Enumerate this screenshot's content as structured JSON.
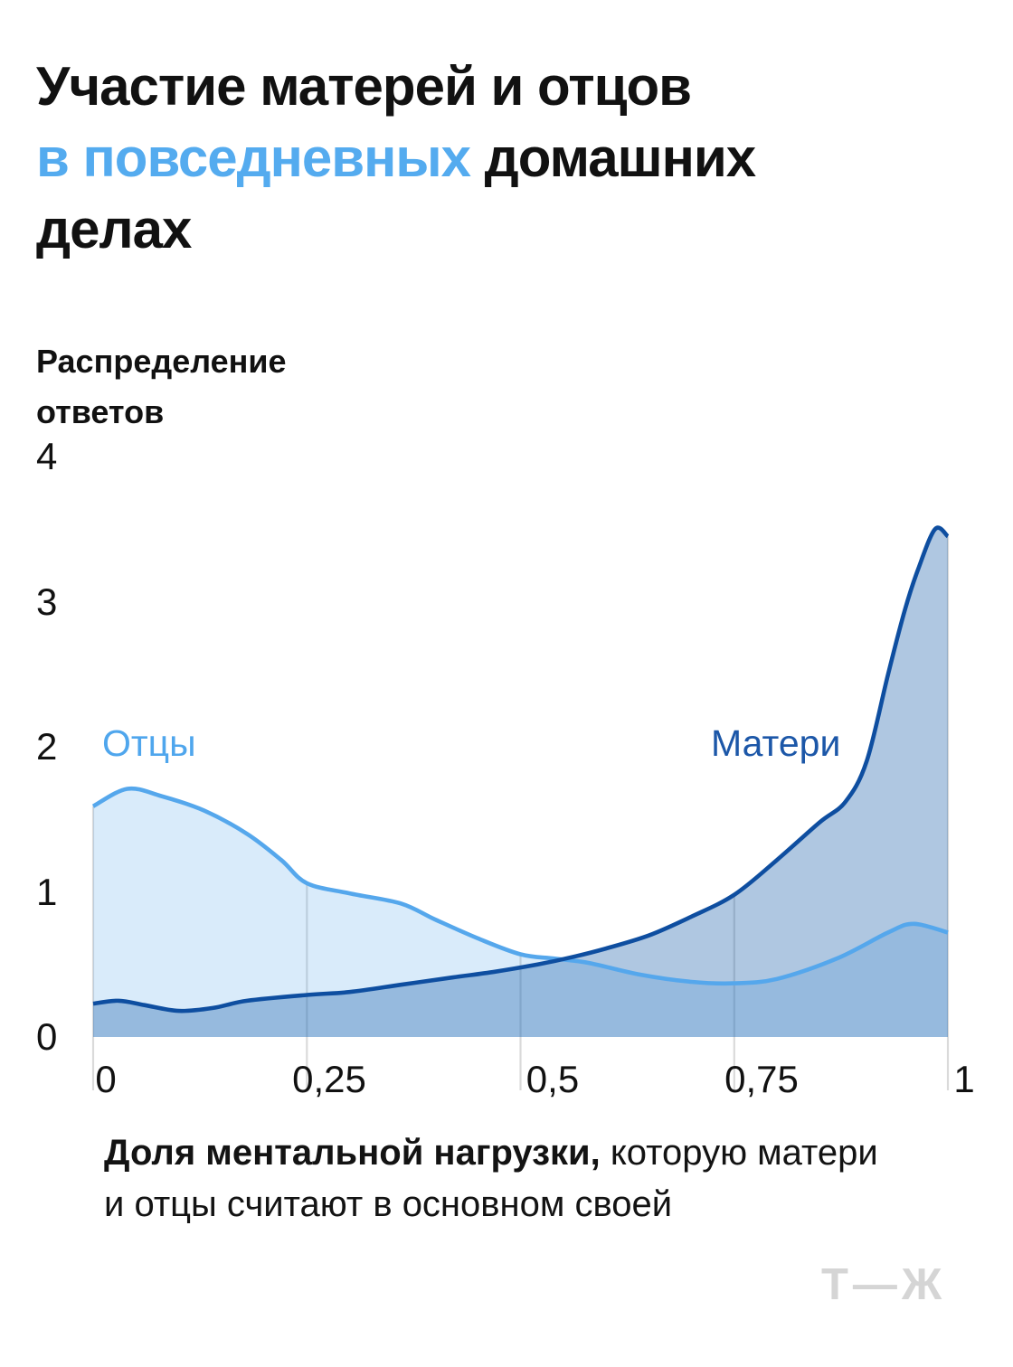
{
  "title": {
    "line1": "Участие матерей и отцов",
    "accent": "в повседневных",
    "line2_rest": " домашних",
    "line3": "делах",
    "accent_color": "#54ABEF",
    "text_color": "#111111"
  },
  "y_axis_title": {
    "line1": "Распределение",
    "line2": "ответов"
  },
  "caption": {
    "bold_part": "Доля ментальной нагрузки,",
    "rest_line1": " которую матери",
    "line2": "и отцы считают в основном своей"
  },
  "brand_logo": "Т—Ж",
  "brand_logo_color": "#d5d5d5",
  "chart_data": {
    "type": "area",
    "title": "Участие матерей и отцов в повседневных домашних делах",
    "ylabel": "Распределение ответов",
    "xlabel": "Доля ментальной нагрузки, которую матери и отцы считают в основном своей",
    "xlim": [
      0,
      1
    ],
    "ylim": [
      0,
      4
    ],
    "grid": true,
    "grid_color": "#dadada",
    "legend_position": "inside",
    "y_tick_labels": [
      "4",
      "3",
      "2",
      "1",
      "0"
    ],
    "x_tick_values": [
      0,
      0.25,
      0.5,
      0.75,
      1
    ],
    "x_tick_labels": [
      "0",
      "0,25",
      "0,5",
      "0,75",
      "1"
    ],
    "series": [
      {
        "name": "Отцы",
        "color": "#55A7EC",
        "fill": "rgba(84,166,234,0.22)",
        "label_color": "#4FA6ED",
        "points": [
          [
            0,
            1.59
          ],
          [
            0.04,
            1.71
          ],
          [
            0.08,
            1.66
          ],
          [
            0.13,
            1.56
          ],
          [
            0.18,
            1.4
          ],
          [
            0.22,
            1.22
          ],
          [
            0.25,
            1.06
          ],
          [
            0.3,
            0.99
          ],
          [
            0.36,
            0.92
          ],
          [
            0.4,
            0.81
          ],
          [
            0.45,
            0.68
          ],
          [
            0.5,
            0.57
          ],
          [
            0.54,
            0.54
          ],
          [
            0.58,
            0.51
          ],
          [
            0.64,
            0.43
          ],
          [
            0.7,
            0.38
          ],
          [
            0.75,
            0.37
          ],
          [
            0.8,
            0.4
          ],
          [
            0.87,
            0.54
          ],
          [
            0.93,
            0.72
          ],
          [
            0.96,
            0.78
          ],
          [
            1.0,
            0.72
          ]
        ]
      },
      {
        "name": "Матери",
        "color": "#0E4EA0",
        "fill": "rgba(27,94,168,0.35)",
        "label_color": "#1C57A8",
        "points": [
          [
            0,
            0.23
          ],
          [
            0.03,
            0.25
          ],
          [
            0.06,
            0.22
          ],
          [
            0.1,
            0.18
          ],
          [
            0.14,
            0.2
          ],
          [
            0.18,
            0.25
          ],
          [
            0.25,
            0.29
          ],
          [
            0.3,
            0.31
          ],
          [
            0.36,
            0.36
          ],
          [
            0.42,
            0.41
          ],
          [
            0.47,
            0.45
          ],
          [
            0.52,
            0.5
          ],
          [
            0.56,
            0.55
          ],
          [
            0.6,
            0.61
          ],
          [
            0.65,
            0.7
          ],
          [
            0.7,
            0.83
          ],
          [
            0.75,
            0.98
          ],
          [
            0.8,
            1.22
          ],
          [
            0.85,
            1.48
          ],
          [
            0.88,
            1.62
          ],
          [
            0.905,
            1.9
          ],
          [
            0.93,
            2.5
          ],
          [
            0.95,
            2.95
          ],
          [
            0.965,
            3.22
          ],
          [
            0.985,
            3.5
          ],
          [
            1.0,
            3.45
          ]
        ]
      }
    ]
  }
}
